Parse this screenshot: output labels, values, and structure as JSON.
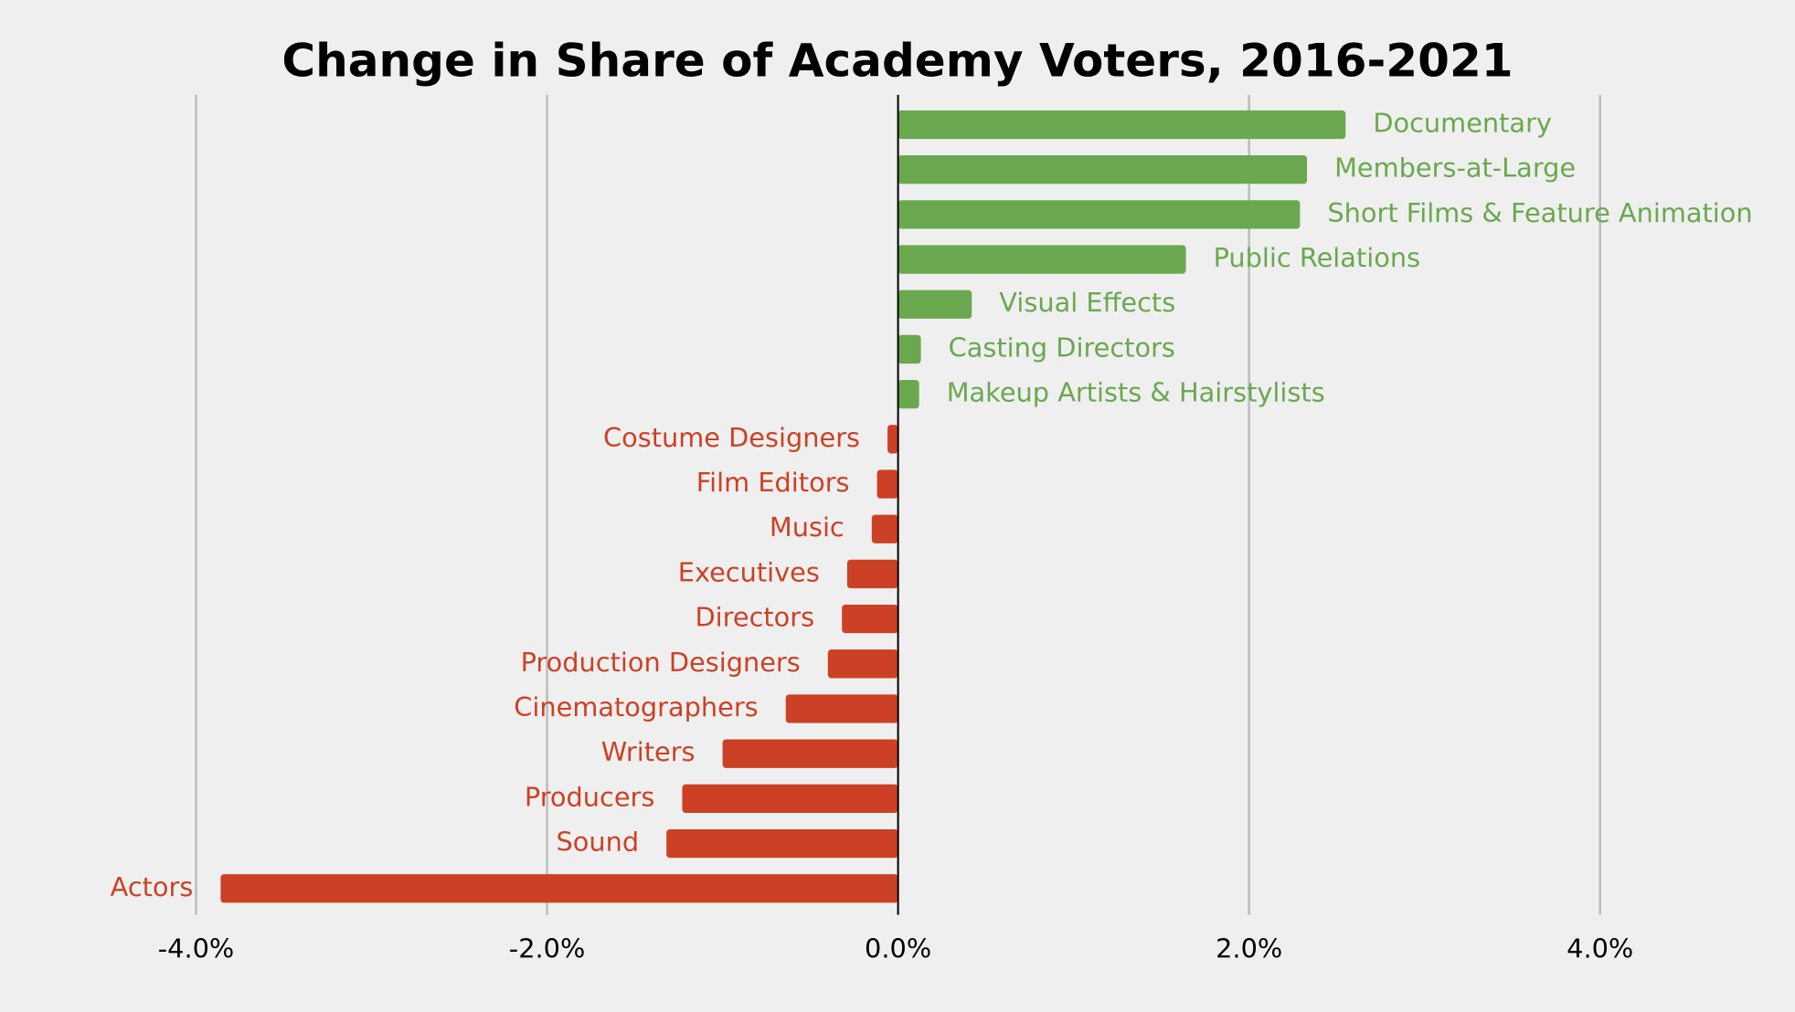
{
  "chart_data": {
    "type": "bar",
    "orientation": "horizontal",
    "title": "Change in Share of Academy Voters, 2016-2021",
    "categories": [
      "Documentary",
      "Members-at-Large",
      "Short Films & Feature Animation",
      "Public Relations",
      "Visual Effects",
      "Casting Directors",
      "Makeup Artists & Hairstylists",
      "Costume Designers",
      "Film Editors",
      "Music",
      "Executives",
      "Directors",
      "Production Designers",
      "Cinematographers",
      "Writers",
      "Producers",
      "Sound",
      "Actors"
    ],
    "values": [
      2.55,
      2.33,
      2.29,
      1.64,
      0.42,
      0.13,
      0.12,
      -0.06,
      -0.12,
      -0.15,
      -0.29,
      -0.32,
      -0.4,
      -0.64,
      -1.0,
      -1.23,
      -1.32,
      -3.86
    ],
    "positive_color": "#6aa84f",
    "negative_color": "#cc4125",
    "xlim": [
      -4,
      4
    ],
    "xticks": [
      {
        "value": -4,
        "label": "-4.0%"
      },
      {
        "value": -2,
        "label": "-2.0%"
      },
      {
        "value": 0,
        "label": "0.0%"
      },
      {
        "value": 2,
        "label": "2.0%"
      },
      {
        "value": 4,
        "label": "4.0%"
      }
    ],
    "grid": true
  }
}
